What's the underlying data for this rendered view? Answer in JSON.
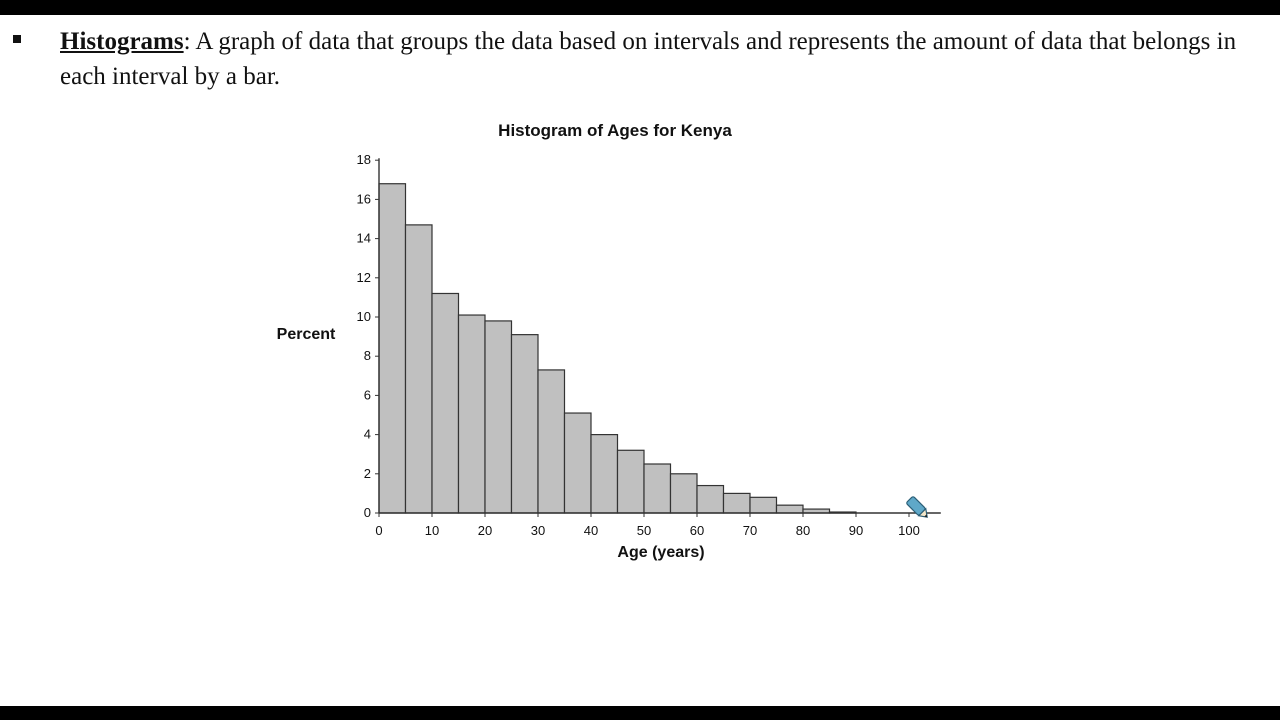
{
  "definition": {
    "term": "Histograms",
    "colon": ":",
    "text": " A graph of data that groups the data based on intervals and represents the amount of data that belongs in each interval by a bar."
  },
  "colors": {
    "bar_fill": "#c0c0c0",
    "bar_stroke": "#333333",
    "axis": "#333333",
    "pencil": "#5fa8c8"
  },
  "icons": {
    "annotation": "pencil-icon",
    "bullet": "square-bullet-icon"
  },
  "chart_data": {
    "type": "bar",
    "title": "Histogram of Ages for Kenya",
    "xlabel": "Age (years)",
    "ylabel": "Percent",
    "bin_width": 5,
    "bins": [
      {
        "start": 0,
        "end": 5,
        "value": 16.8
      },
      {
        "start": 5,
        "end": 10,
        "value": 14.7
      },
      {
        "start": 10,
        "end": 15,
        "value": 11.2
      },
      {
        "start": 15,
        "end": 20,
        "value": 10.1
      },
      {
        "start": 20,
        "end": 25,
        "value": 9.8
      },
      {
        "start": 25,
        "end": 30,
        "value": 9.1
      },
      {
        "start": 30,
        "end": 35,
        "value": 7.3
      },
      {
        "start": 35,
        "end": 40,
        "value": 5.1
      },
      {
        "start": 40,
        "end": 45,
        "value": 4.0
      },
      {
        "start": 45,
        "end": 50,
        "value": 3.2
      },
      {
        "start": 50,
        "end": 55,
        "value": 2.5
      },
      {
        "start": 55,
        "end": 60,
        "value": 2.0
      },
      {
        "start": 60,
        "end": 65,
        "value": 1.4
      },
      {
        "start": 65,
        "end": 70,
        "value": 1.0
      },
      {
        "start": 70,
        "end": 75,
        "value": 0.8
      },
      {
        "start": 75,
        "end": 80,
        "value": 0.4
      },
      {
        "start": 80,
        "end": 85,
        "value": 0.2
      },
      {
        "start": 85,
        "end": 90,
        "value": 0.05
      }
    ],
    "xlim": [
      0,
      106
    ],
    "ylim": [
      0,
      18
    ],
    "x_ticks": [
      0,
      10,
      20,
      30,
      40,
      50,
      60,
      70,
      80,
      90,
      100
    ],
    "y_ticks": [
      0,
      2,
      4,
      6,
      8,
      10,
      12,
      14,
      16,
      18
    ],
    "grid": false,
    "legend": "none"
  }
}
